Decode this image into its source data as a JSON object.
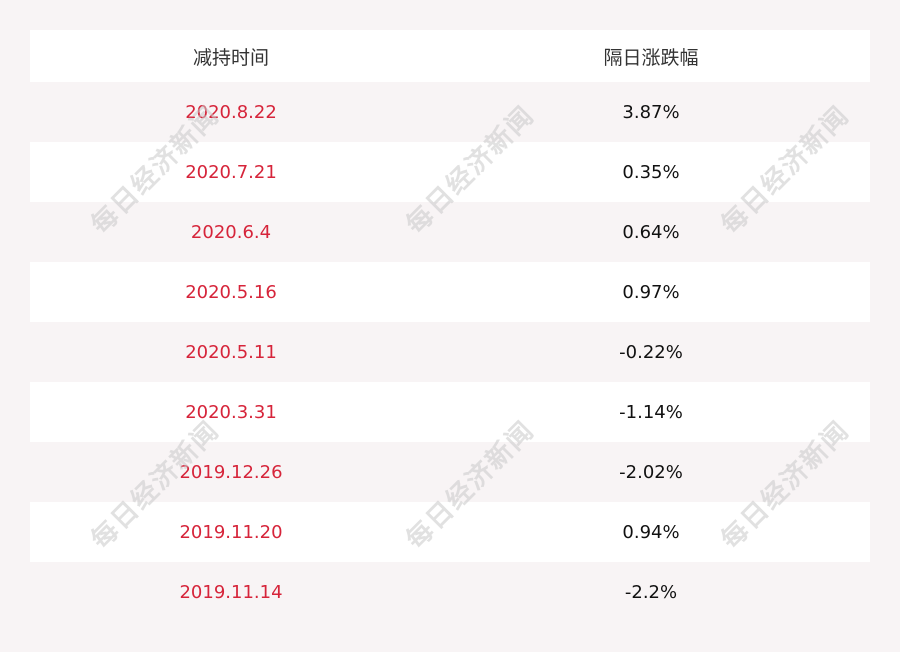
{
  "table": {
    "headers": [
      "减持时间",
      "隔日涨跌幅"
    ],
    "rows": [
      {
        "date": "2020.8.22",
        "change": "3.87%"
      },
      {
        "date": "2020.7.21",
        "change": "0.35%"
      },
      {
        "date": "2020.6.4",
        "change": "0.64%"
      },
      {
        "date": "2020.5.16",
        "change": "0.97%"
      },
      {
        "date": "2020.5.11",
        "change": "-0.22%"
      },
      {
        "date": "2020.3.31",
        "change": "-1.14%"
      },
      {
        "date": "2019.12.26",
        "change": "-2.02%"
      },
      {
        "date": "2019.11.20",
        "change": "0.94%"
      },
      {
        "date": "2019.11.14",
        "change": "-2.2%"
      }
    ]
  },
  "watermark": "每日经济新闻",
  "colors": {
    "date": "#d6243a",
    "value": "#111111",
    "stripe": "#ffffff",
    "background": "#f8f4f5"
  }
}
